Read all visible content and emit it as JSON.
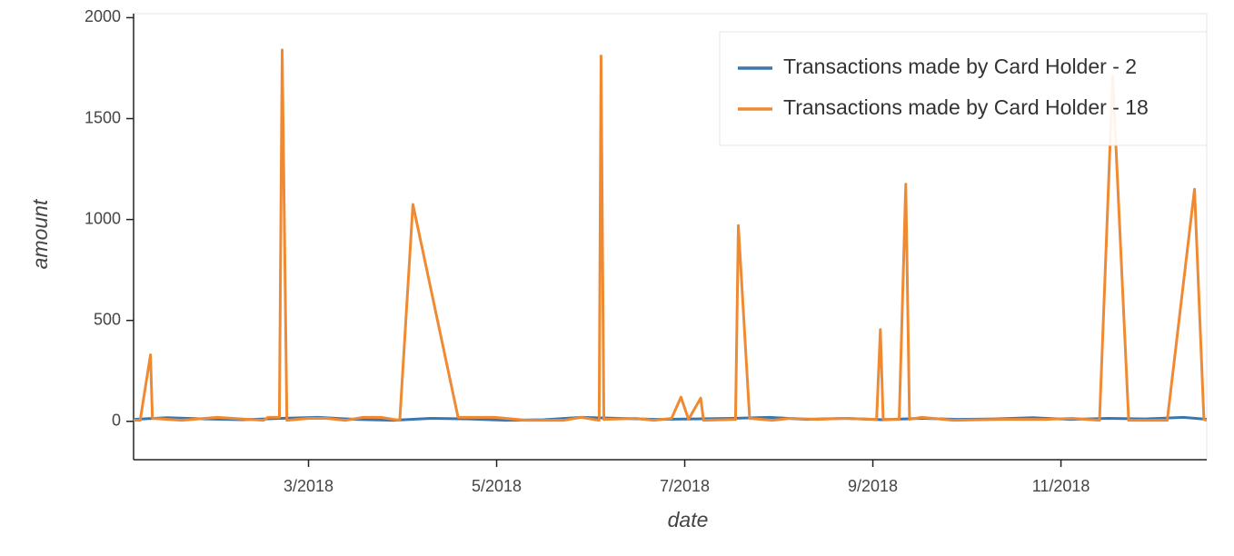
{
  "chart_data": {
    "type": "line",
    "x_label": "date",
    "y_label": "amount",
    "xlim": [
      1.14,
      12.55
    ],
    "xticks": [
      {
        "value": 3,
        "label": "3/2018"
      },
      {
        "value": 5,
        "label": "5/2018"
      },
      {
        "value": 7,
        "label": "7/2018"
      },
      {
        "value": 9,
        "label": "9/2018"
      },
      {
        "value": 11,
        "label": "11/2018"
      }
    ],
    "ylim": [
      -190,
      2020
    ],
    "yticks": [
      0,
      500,
      1000,
      1500,
      2000
    ],
    "legend": "top_right",
    "series": [
      {
        "name": "Transactions made by Card Holder - 2",
        "color": "#3b77af",
        "x": [
          1.14,
          1.5,
          1.9,
          2.3,
          2.7,
          3.1,
          3.5,
          3.9,
          4.3,
          4.7,
          5.1,
          5.5,
          5.9,
          6.3,
          6.7,
          7.1,
          7.5,
          7.9,
          8.3,
          8.7,
          9.1,
          9.5,
          9.9,
          10.3,
          10.7,
          11.1,
          11.5,
          11.9,
          12.3,
          12.55
        ],
        "values": [
          10,
          18,
          12,
          8,
          15,
          20,
          10,
          5,
          15,
          12,
          5,
          8,
          20,
          15,
          10,
          12,
          15,
          20,
          10,
          15,
          8,
          15,
          10,
          12,
          18,
          10,
          15,
          12,
          20,
          10
        ]
      },
      {
        "name": "Transactions made by Card Holder - 18",
        "color": "#ef8a33",
        "x": [
          1.14,
          1.21,
          1.32,
          1.34,
          1.65,
          2.03,
          2.52,
          2.57,
          2.69,
          2.72,
          2.77,
          3.0,
          3.19,
          3.39,
          3.58,
          3.77,
          3.97,
          4.11,
          4.59,
          4.98,
          5.32,
          5.71,
          5.9,
          6.09,
          6.11,
          6.14,
          6.48,
          6.67,
          6.86,
          6.96,
          7.04,
          7.17,
          7.2,
          7.54,
          7.57,
          7.69,
          7.93,
          8.12,
          8.41,
          8.7,
          9.04,
          9.08,
          9.11,
          9.28,
          9.35,
          9.39,
          9.52,
          9.86,
          10.34,
          10.83,
          11.12,
          11.41,
          11.55,
          11.72,
          12.13,
          12.42,
          12.52,
          12.55
        ],
        "values": [
          5,
          5,
          330,
          15,
          5,
          20,
          5,
          20,
          20,
          1840,
          5,
          15,
          15,
          5,
          20,
          20,
          5,
          1075,
          20,
          20,
          5,
          5,
          20,
          5,
          1810,
          10,
          15,
          5,
          15,
          120,
          10,
          115,
          5,
          10,
          970,
          15,
          5,
          15,
          10,
          15,
          10,
          455,
          10,
          10,
          1175,
          10,
          20,
          5,
          10,
          10,
          15,
          5,
          1710,
          5,
          5,
          1150,
          10,
          5
        ]
      }
    ]
  }
}
